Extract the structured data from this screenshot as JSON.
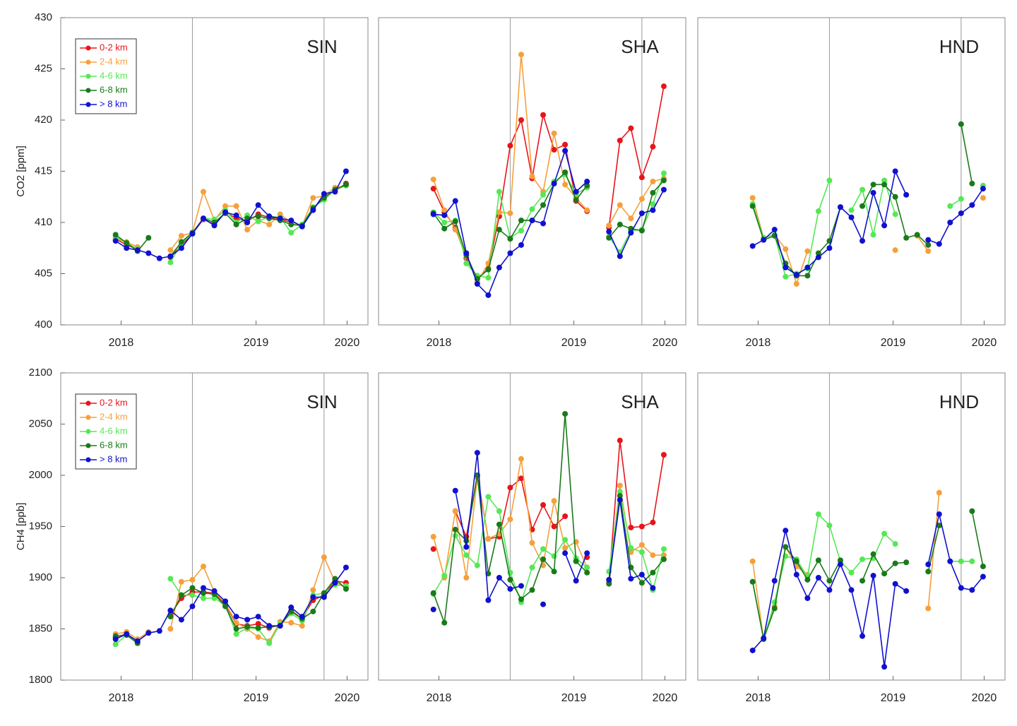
{
  "chart_data": [
    {
      "type": "line",
      "title": "SIN",
      "y_label": "CO2 [ppm]",
      "legend": "upper left",
      "x": [
        0,
        1,
        2,
        3,
        4,
        5,
        6,
        7,
        8,
        9,
        10,
        11,
        12,
        13,
        14,
        15,
        16,
        17,
        18,
        19,
        20,
        21
      ],
      "xlim": [
        -5,
        23
      ],
      "xticks": [
        {
          "value": 0.5,
          "label": "2018"
        },
        {
          "value": 12.8,
          "label": "2019"
        },
        {
          "value": 21.1,
          "label": "2020"
        }
      ],
      "vlines": [
        7,
        19
      ],
      "ylim": [
        400,
        430
      ],
      "yticks": [
        400,
        405,
        410,
        415,
        420,
        425,
        430
      ],
      "series": [
        {
          "name": "0-2 km",
          "color": "#e8141b",
          "values": [
            408.4,
            407.8,
            407.4,
            null,
            null,
            406.6,
            407.8,
            408.9,
            410.3,
            409.8,
            411,
            410.4,
            410.1,
            410.8,
            410.5,
            410.3,
            410,
            409.7,
            411.3,
            412.5,
            413.1,
            413.8
          ]
        },
        {
          "name": "2-4 km",
          "color": "#f5a03c",
          "values": [
            408.4,
            408.1,
            407.6,
            null,
            null,
            407.3,
            408.7,
            409,
            413,
            410.2,
            411.6,
            411.6,
            409.3,
            410.2,
            409.8,
            410.8,
            410,
            409.7,
            412.4,
            412.6,
            413.4,
            413.6
          ]
        },
        {
          "name": "4-6 km",
          "color": "#55e855",
          "values": [
            408.6,
            408,
            407.4,
            null,
            null,
            406.1,
            408,
            408.9,
            410.4,
            410.3,
            411.2,
            410,
            410.7,
            410.1,
            410.6,
            410.5,
            409,
            409.8,
            411.5,
            412.2,
            413.2,
            413.6
          ]
        },
        {
          "name": "6-8 km",
          "color": "#1a7a1a",
          "values": [
            408.8,
            408,
            407.2,
            408.5,
            null,
            406.7,
            408.1,
            409,
            410.4,
            410,
            410.9,
            409.8,
            410.4,
            410.6,
            410.4,
            410.2,
            409.8,
            409.7,
            411.4,
            412.4,
            413.2,
            413.7
          ]
        },
        {
          "name": "> 8 km",
          "color": "#1010d0",
          "values": [
            408.2,
            407.5,
            407.3,
            407,
            406.5,
            406.7,
            407.5,
            408.9,
            410.4,
            409.7,
            411,
            410.7,
            410,
            411.7,
            410.6,
            410.4,
            410.2,
            409.6,
            411.2,
            412.8,
            413,
            415
          ]
        }
      ]
    },
    {
      "type": "line",
      "title": "SHA",
      "x": [
        0,
        1,
        2,
        3,
        4,
        5,
        6,
        7,
        8,
        9,
        10,
        11,
        12,
        13,
        14,
        15,
        16,
        17,
        18,
        19,
        20,
        21
      ],
      "xlim": [
        -5,
        23
      ],
      "xticks": [
        {
          "value": 0.5,
          "label": "2018"
        },
        {
          "value": 12.8,
          "label": "2019"
        },
        {
          "value": 21.1,
          "label": "2020"
        }
      ],
      "vlines": [
        7,
        19
      ],
      "ylim": [
        400,
        430
      ],
      "series": [
        {
          "color": "#e8141b",
          "values": [
            413.3,
            411,
            409.5,
            406.5,
            404.5,
            405.5,
            410.6,
            417.5,
            420,
            414.3,
            420.5,
            417.1,
            417.6,
            412.1,
            411.1,
            null,
            409.5,
            418,
            419.2,
            414.4,
            417.4,
            423.3
          ]
        },
        {
          "color": "#f5a03c",
          "values": [
            414.2,
            411.2,
            409.3,
            406.8,
            404.2,
            406,
            411,
            410.9,
            426.4,
            414.5,
            413,
            418.7,
            413.7,
            412.4,
            411.2,
            null,
            409.7,
            411.7,
            410.4,
            412.3,
            414,
            414.3
          ]
        },
        {
          "color": "#55e855",
          "values": [
            411,
            410,
            410.2,
            406,
            404.8,
            404.6,
            413,
            408.5,
            409.2,
            411.3,
            412.7,
            414,
            414.7,
            412.8,
            413.4,
            null,
            408.6,
            407.1,
            409.2,
            409.3,
            411.8,
            414.8
          ]
        },
        {
          "color": "#1a7a1a",
          "values": [
            410.9,
            409.4,
            410.1,
            406.8,
            404.5,
            405.4,
            409.3,
            408.4,
            410.2,
            410.2,
            411.7,
            413.8,
            414.9,
            412.2,
            413.6,
            null,
            408.5,
            409.8,
            409.4,
            409.2,
            412.9,
            414.1
          ]
        },
        {
          "color": "#1010d0",
          "values": [
            410.8,
            410.7,
            412.1,
            407,
            404,
            402.9,
            405.6,
            407,
            407.8,
            410.2,
            409.9,
            413.8,
            417,
            413,
            414,
            null,
            409.1,
            406.7,
            409,
            410.9,
            411.2,
            413.2
          ]
        }
      ]
    },
    {
      "type": "line",
      "title": "HND",
      "x": [
        0,
        1,
        2,
        3,
        4,
        5,
        6,
        7,
        8,
        9,
        10,
        11,
        12,
        13,
        14,
        15,
        16,
        17,
        18,
        19,
        20,
        21
      ],
      "xlim": [
        -5,
        23
      ],
      "xticks": [
        {
          "value": 0.5,
          "label": "2018"
        },
        {
          "value": 12.8,
          "label": "2019"
        },
        {
          "value": 21.1,
          "label": "2020"
        }
      ],
      "vlines": [
        7,
        19
      ],
      "ylim": [
        400,
        430
      ],
      "series": [
        {
          "color": "#f5a03c",
          "values": [
            412.4,
            408.5,
            408.8,
            407.4,
            404,
            407.2,
            null,
            null,
            null,
            null,
            null,
            null,
            null,
            407.3,
            null,
            408.7,
            407.2,
            null,
            null,
            null,
            null,
            412.4
          ]
        },
        {
          "color": "#55e855",
          "values": [
            411.8,
            408.5,
            408.8,
            404.7,
            405,
            405.5,
            411.1,
            414.1,
            null,
            411.2,
            413.2,
            408.8,
            414.1,
            410.8,
            null,
            null,
            null,
            null,
            411.6,
            412.3,
            null,
            413.6
          ]
        },
        {
          "color": "#1a7a1a",
          "values": [
            411.6,
            408.3,
            408.7,
            406,
            404.8,
            404.8,
            407,
            408.2,
            411.5,
            null,
            411.6,
            413.7,
            413.7,
            412.5,
            408.5,
            408.8,
            407.8,
            null,
            null,
            419.6,
            413.8,
            null
          ]
        },
        {
          "color": "#1010d0",
          "values": [
            407.7,
            408.3,
            409.3,
            405.6,
            404.9,
            405.6,
            406.6,
            407.5,
            411.5,
            410.5,
            408.2,
            412.9,
            409.7,
            415,
            412.7,
            null,
            408.3,
            407.9,
            410,
            410.9,
            411.7,
            413.3
          ]
        }
      ]
    },
    {
      "type": "line",
      "title": "SIN",
      "y_label": "CH4 [ppb]",
      "legend": "upper left",
      "x": [
        0,
        1,
        2,
        3,
        4,
        5,
        6,
        7,
        8,
        9,
        10,
        11,
        12,
        13,
        14,
        15,
        16,
        17,
        18,
        19,
        20,
        21
      ],
      "xlim": [
        -5,
        23
      ],
      "xticks": [
        {
          "value": 0.5,
          "label": "2018"
        },
        {
          "value": 12.8,
          "label": "2019"
        },
        {
          "value": 21.1,
          "label": "2020"
        }
      ],
      "vlines": [
        7,
        19
      ],
      "ylim": [
        1800,
        2100
      ],
      "yticks": [
        1800,
        1850,
        1900,
        1950,
        2000,
        2050,
        2100
      ],
      "series": [
        {
          "name": "0-2 km",
          "color": "#e8141b",
          "values": [
            1842,
            1845,
            1838,
            null,
            null,
            1864,
            1880,
            1886,
            1886,
            1885,
            1874,
            1855,
            1853,
            1855,
            1851,
            1854,
            1868,
            1860,
            1878,
            1883,
            1897,
            1895
          ]
        },
        {
          "name": "2-4 km",
          "color": "#f5a03c",
          "values": [
            1845,
            1847,
            1840,
            1847,
            null,
            1850,
            1896,
            1898,
            1911,
            1886,
            1875,
            1856,
            1850,
            1842,
            1838,
            1857,
            1856,
            1853,
            1888,
            1920,
            1896,
            1890
          ]
        },
        {
          "name": "4-6 km",
          "color": "#55e855",
          "values": [
            1835,
            1844,
            1837,
            null,
            null,
            1899,
            1883,
            1883,
            1880,
            1880,
            1873,
            1845,
            1851,
            1850,
            1836,
            1855,
            1865,
            1858,
            1883,
            1885,
            1893,
            1892
          ]
        },
        {
          "name": "6-8 km",
          "color": "#1a7a1a",
          "values": [
            1843,
            1844,
            1836,
            null,
            null,
            1862,
            1883,
            1890,
            1885,
            1884,
            1872,
            1850,
            1852,
            1851,
            1852,
            1853,
            1867,
            1860,
            1867,
            1885,
            1899,
            1889
          ]
        },
        {
          "name": "> 8 km",
          "color": "#1010d0",
          "values": [
            1840,
            1845,
            1838,
            1846,
            1848,
            1868,
            1859,
            1872,
            1890,
            1887,
            1877,
            1862,
            1859,
            1862,
            1853,
            1853,
            1871,
            1862,
            1881,
            1881,
            1895,
            1910
          ]
        }
      ]
    },
    {
      "type": "line",
      "title": "SHA",
      "x": [
        0,
        1,
        2,
        3,
        4,
        5,
        6,
        7,
        8,
        9,
        10,
        11,
        12,
        13,
        14,
        15,
        16,
        17,
        18,
        19,
        20,
        21
      ],
      "xlim": [
        -5,
        23
      ],
      "xticks": [
        {
          "value": 0.5,
          "label": "2018"
        },
        {
          "value": 12.8,
          "label": "2019"
        },
        {
          "value": 21.1,
          "label": "2020"
        }
      ],
      "vlines": [
        7,
        19
      ],
      "ylim": [
        1800,
        2100
      ],
      "series": [
        {
          "color": "#e8141b",
          "values": [
            1928,
            null,
            1965,
            1940,
            2000,
            1938,
            1940,
            1988,
            1997,
            1947,
            1971,
            1950,
            1960,
            null,
            1920,
            null,
            1895,
            2034,
            1949,
            1950,
            1954,
            2020
          ]
        },
        {
          "color": "#f5a03c",
          "values": [
            1940,
            1900,
            1965,
            1900,
            1998,
            1938,
            1943,
            1957,
            2016,
            1934,
            1912,
            1975,
            1929,
            1935,
            1910,
            null,
            1898,
            1990,
            1925,
            1932,
            1922,
            1922
          ]
        },
        {
          "color": "#55e855",
          "values": [
            1884,
            1902,
            1941,
            1922,
            1912,
            1979,
            1965,
            1905,
            1876,
            1910,
            1928,
            1921,
            1937,
            1919,
            1910,
            null,
            1906,
            1984,
            1929,
            1925,
            1888,
            1928
          ]
        },
        {
          "color": "#1a7a1a",
          "values": [
            1885,
            1856,
            1947,
            1936,
            2000,
            1904,
            1952,
            1898,
            1879,
            1888,
            1918,
            1906,
            2060,
            1916,
            1905,
            null,
            1894,
            1980,
            1910,
            1895,
            1905,
            1918
          ]
        },
        {
          "color": "#1010d0",
          "values": [
            1869,
            null,
            1985,
            1930,
            2022,
            1878,
            1900,
            1889,
            1892,
            null,
            1874,
            null,
            1924,
            1897,
            1924,
            null,
            1898,
            1976,
            1899,
            1903,
            1890,
            null
          ]
        }
      ]
    },
    {
      "type": "line",
      "title": "HND",
      "x": [
        0,
        1,
        2,
        3,
        4,
        5,
        6,
        7,
        8,
        9,
        10,
        11,
        12,
        13,
        14,
        15,
        16,
        17,
        18,
        19,
        20,
        21
      ],
      "xlim": [
        -5,
        23
      ],
      "xticks": [
        {
          "value": 0.5,
          "label": "2018"
        },
        {
          "value": 12.8,
          "label": "2019"
        },
        {
          "value": 21.1,
          "label": "2020"
        }
      ],
      "vlines": [
        7,
        19
      ],
      "ylim": [
        1800,
        2100
      ],
      "series": [
        {
          "color": "#f5a03c",
          "values": [
            1916,
            1840,
            1872,
            1930,
            1911,
            1903,
            null,
            null,
            null,
            null,
            null,
            null,
            null,
            null,
            null,
            null,
            1870,
            1983,
            null,
            null,
            null,
            null
          ]
        },
        {
          "color": "#55e855",
          "values": [
            1896,
            1840,
            1876,
            1921,
            1918,
            1901,
            1962,
            1951,
            1916,
            1905,
            1918,
            1919,
            1943,
            1933,
            null,
            null,
            null,
            null,
            1916,
            1916,
            1916,
            null
          ]
        },
        {
          "color": "#1a7a1a",
          "values": [
            1896,
            1840,
            1870,
            1930,
            1916,
            1898,
            1917,
            1897,
            1917,
            null,
            1897,
            1923,
            1904,
            1914,
            1915,
            null,
            1906,
            1951,
            null,
            null,
            1965,
            1911
          ]
        },
        {
          "color": "#1010d0",
          "values": [
            1829,
            1841,
            1897,
            1946,
            1903,
            1880,
            1900,
            1888,
            1913,
            1888,
            1843,
            1902,
            1813,
            1894,
            1887,
            null,
            1913,
            1962,
            1916,
            1890,
            1888,
            1901
          ]
        }
      ]
    }
  ]
}
